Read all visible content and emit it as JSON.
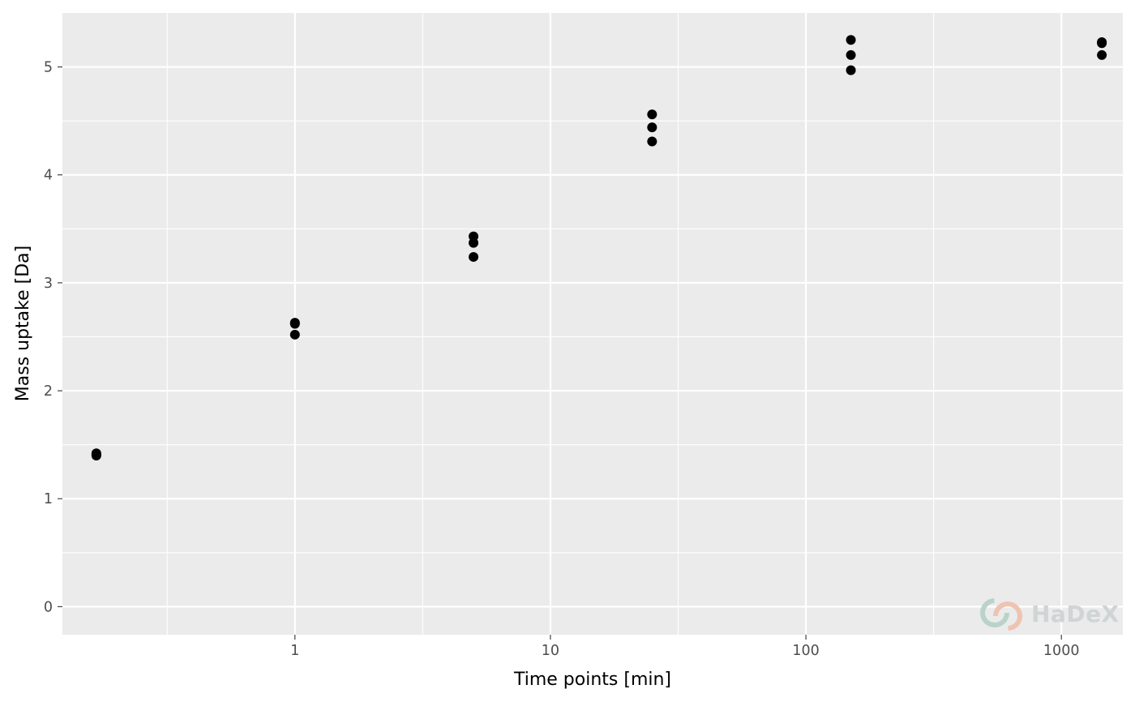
{
  "chart_data": {
    "type": "scatter",
    "title": "",
    "xlabel": "Time points [min]",
    "ylabel": "Mass uptake [Da]",
    "x_scale": "log10",
    "xlim": [
      0.123,
      1740
    ],
    "ylim": [
      -0.26,
      5.5
    ],
    "x_ticks": [
      {
        "value": 1,
        "label": "1"
      },
      {
        "value": 10,
        "label": "10"
      },
      {
        "value": 100,
        "label": "100"
      },
      {
        "value": 1000,
        "label": "1000"
      }
    ],
    "y_ticks": [
      {
        "value": 0,
        "label": "0"
      },
      {
        "value": 1,
        "label": "1"
      },
      {
        "value": 2,
        "label": "2"
      },
      {
        "value": 3,
        "label": "3"
      },
      {
        "value": 4,
        "label": "4"
      },
      {
        "value": 5,
        "label": "5"
      }
    ],
    "grid": true,
    "point_color": "#000000",
    "panel_background": "#ebebeb",
    "grid_color": "#ffffff",
    "points": [
      {
        "x": 0.167,
        "y": 1.4
      },
      {
        "x": 0.167,
        "y": 1.42
      },
      {
        "x": 0.167,
        "y": 1.41
      },
      {
        "x": 1,
        "y": 2.52
      },
      {
        "x": 1,
        "y": 2.62
      },
      {
        "x": 1,
        "y": 2.63
      },
      {
        "x": 5,
        "y": 3.24
      },
      {
        "x": 5,
        "y": 3.37
      },
      {
        "x": 5,
        "y": 3.43
      },
      {
        "x": 25,
        "y": 4.31
      },
      {
        "x": 25,
        "y": 4.44
      },
      {
        "x": 25,
        "y": 4.56
      },
      {
        "x": 150,
        "y": 4.97
      },
      {
        "x": 150,
        "y": 5.11
      },
      {
        "x": 150,
        "y": 5.25
      },
      {
        "x": 1440,
        "y": 5.11
      },
      {
        "x": 1440,
        "y": 5.22
      },
      {
        "x": 1440,
        "y": 5.23
      }
    ]
  },
  "watermark": {
    "text": "HaDeX",
    "colors": [
      "#b9d3c9",
      "#efc3b2"
    ]
  }
}
